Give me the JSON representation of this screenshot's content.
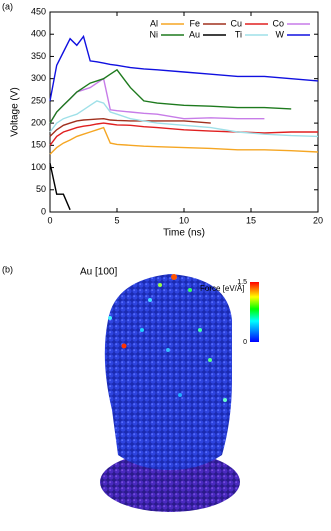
{
  "chart_data": {
    "type": "line",
    "panel_label": "(a)",
    "x_label": "Time (ns)",
    "y_label": "Voltage (V)",
    "x": [
      0,
      0.5,
      1,
      1.5,
      2,
      2.5,
      3,
      3.5,
      4,
      4.5,
      5,
      6,
      7,
      8,
      10,
      12,
      14,
      16,
      18,
      20
    ],
    "series": [
      {
        "name": "Al",
        "color": "#f5a623",
        "values": [
          130,
          145,
          155,
          162,
          170,
          175,
          180,
          185,
          190,
          155,
          152,
          150,
          148,
          147,
          145,
          143,
          140,
          140,
          138,
          135
        ]
      },
      {
        "name": "Fe",
        "color": "#a0301e",
        "values": [
          170,
          185,
          195,
          200,
          205,
          207,
          208,
          209,
          210,
          207,
          206,
          205,
          205,
          205,
          205,
          200,
          null,
          null,
          null,
          null
        ]
      },
      {
        "name": "Cu",
        "color": "#e02020",
        "values": [
          150,
          170,
          180,
          185,
          190,
          193,
          195,
          198,
          200,
          198,
          196,
          195,
          192,
          190,
          185,
          182,
          180,
          178,
          180,
          180
        ]
      },
      {
        "name": "Co",
        "color": "#c77ce8",
        "values": [
          200,
          225,
          240,
          255,
          270,
          275,
          280,
          290,
          300,
          230,
          228,
          225,
          222,
          220,
          210,
          212,
          210,
          210,
          null,
          null
        ]
      },
      {
        "name": "Ni",
        "color": "#1e7a1e",
        "values": [
          200,
          225,
          240,
          255,
          270,
          280,
          290,
          295,
          300,
          310,
          320,
          280,
          250,
          245,
          240,
          238,
          235,
          235,
          232,
          null
        ]
      },
      {
        "name": "Au",
        "color": "#000000",
        "values": [
          110,
          40,
          40,
          5,
          null,
          null,
          null,
          null,
          null,
          null,
          null,
          null,
          null,
          null,
          null,
          null,
          null,
          null,
          null,
          null
        ]
      },
      {
        "name": "Ti",
        "color": "#9fe0e8",
        "values": [
          180,
          200,
          210,
          215,
          220,
          230,
          240,
          250,
          245,
          225,
          220,
          210,
          205,
          200,
          195,
          190,
          180,
          175,
          172,
          170
        ]
      },
      {
        "name": "W",
        "color": "#1010e0",
        "values": [
          250,
          330,
          360,
          390,
          375,
          395,
          340,
          338,
          335,
          332,
          330,
          325,
          322,
          320,
          315,
          310,
          305,
          305,
          300,
          295
        ]
      }
    ],
    "xlim": [
      0,
      20
    ],
    "xticks": [
      0,
      5,
      10,
      15,
      20
    ],
    "ylim": [
      0,
      450
    ],
    "yticks": [
      0,
      50,
      100,
      150,
      200,
      250,
      300,
      350,
      400,
      450
    ]
  },
  "panel_b": {
    "panel_label": "(b)",
    "title": "Au [100]",
    "colorbar_title": "Force [eV/Å]",
    "colorbar_lim": [
      0,
      1.5
    ],
    "colorbar_ticks": [
      1.5,
      0
    ]
  }
}
